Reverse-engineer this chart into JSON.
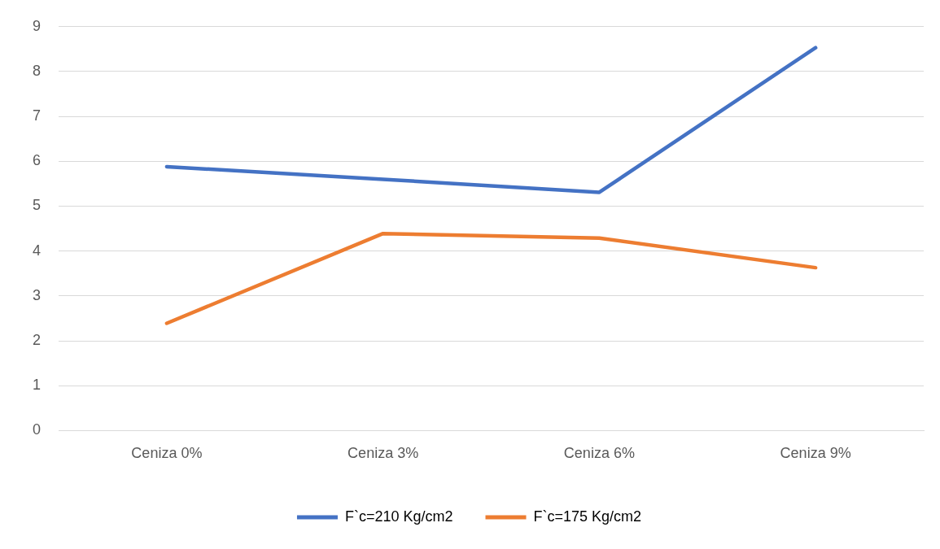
{
  "chart_data": {
    "type": "line",
    "categories": [
      "Ceniza 0%",
      "Ceniza 3%",
      "Ceniza 6%",
      "Ceniza 9%"
    ],
    "series": [
      {
        "name": "F`c=210 Kg/cm2",
        "color": "#4472c4",
        "values": [
          5.88,
          5.6,
          5.31,
          8.53
        ]
      },
      {
        "name": "F`c=175 Kg/cm2",
        "color": "#ed7d31",
        "values": [
          2.39,
          4.39,
          4.29,
          3.63
        ]
      }
    ],
    "ylim": [
      0,
      9
    ],
    "yticks": [
      0,
      1,
      2,
      3,
      4,
      5,
      6,
      7,
      8,
      9
    ],
    "grid": "y",
    "legend": "bottom",
    "marker": "none",
    "line_style": "solid"
  }
}
